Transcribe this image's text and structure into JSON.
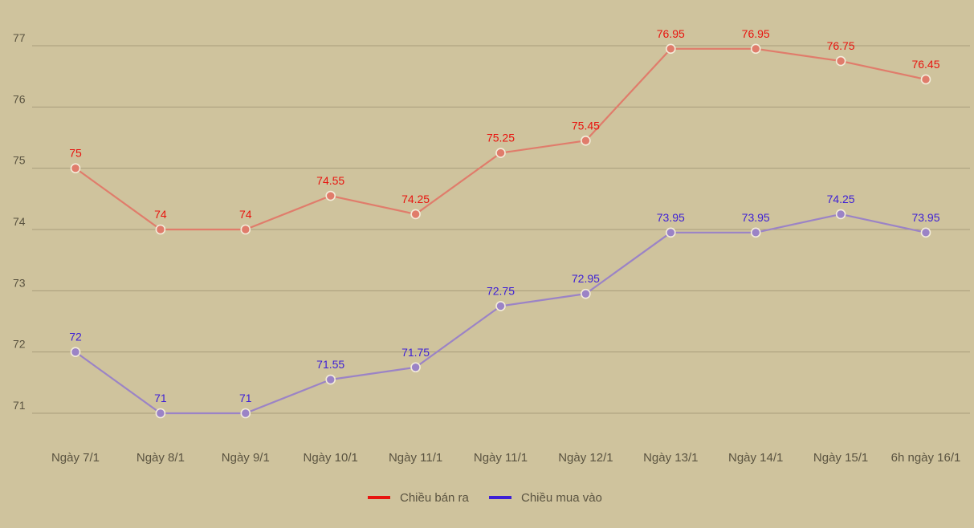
{
  "chart_data": {
    "type": "line",
    "categories": [
      "Ngày 7/1",
      "Ngày 8/1",
      "Ngày 9/1",
      "Ngày 10/1",
      "Ngày 11/1",
      "Ngày 11/1",
      "Ngày 12/1",
      "Ngày 13/1",
      "Ngày 14/1",
      "Ngày 15/1",
      "6h ngày 16/1"
    ],
    "series": [
      {
        "name": "Chiều bán ra",
        "values": [
          75,
          74,
          74,
          74.55,
          74.25,
          75.25,
          75.45,
          76.95,
          76.95,
          76.75,
          76.45
        ],
        "line_color": "#e07c6b",
        "label_color": "#e8140f",
        "legend_color": "#e8140f"
      },
      {
        "name": "Chiều mua vào",
        "values": [
          72,
          71,
          71,
          71.55,
          71.75,
          72.75,
          72.95,
          73.95,
          73.95,
          74.25,
          73.95
        ],
        "line_color": "#9b83c6",
        "label_color": "#3d1fd6",
        "legend_color": "#3d1fd6"
      }
    ],
    "yticks": [
      71,
      72,
      73,
      74,
      75,
      76,
      77
    ],
    "ylim": [
      70.5,
      77.5
    ],
    "grid": true,
    "legend_position": "bottom-center",
    "title": "",
    "xlabel": "",
    "ylabel": ""
  }
}
